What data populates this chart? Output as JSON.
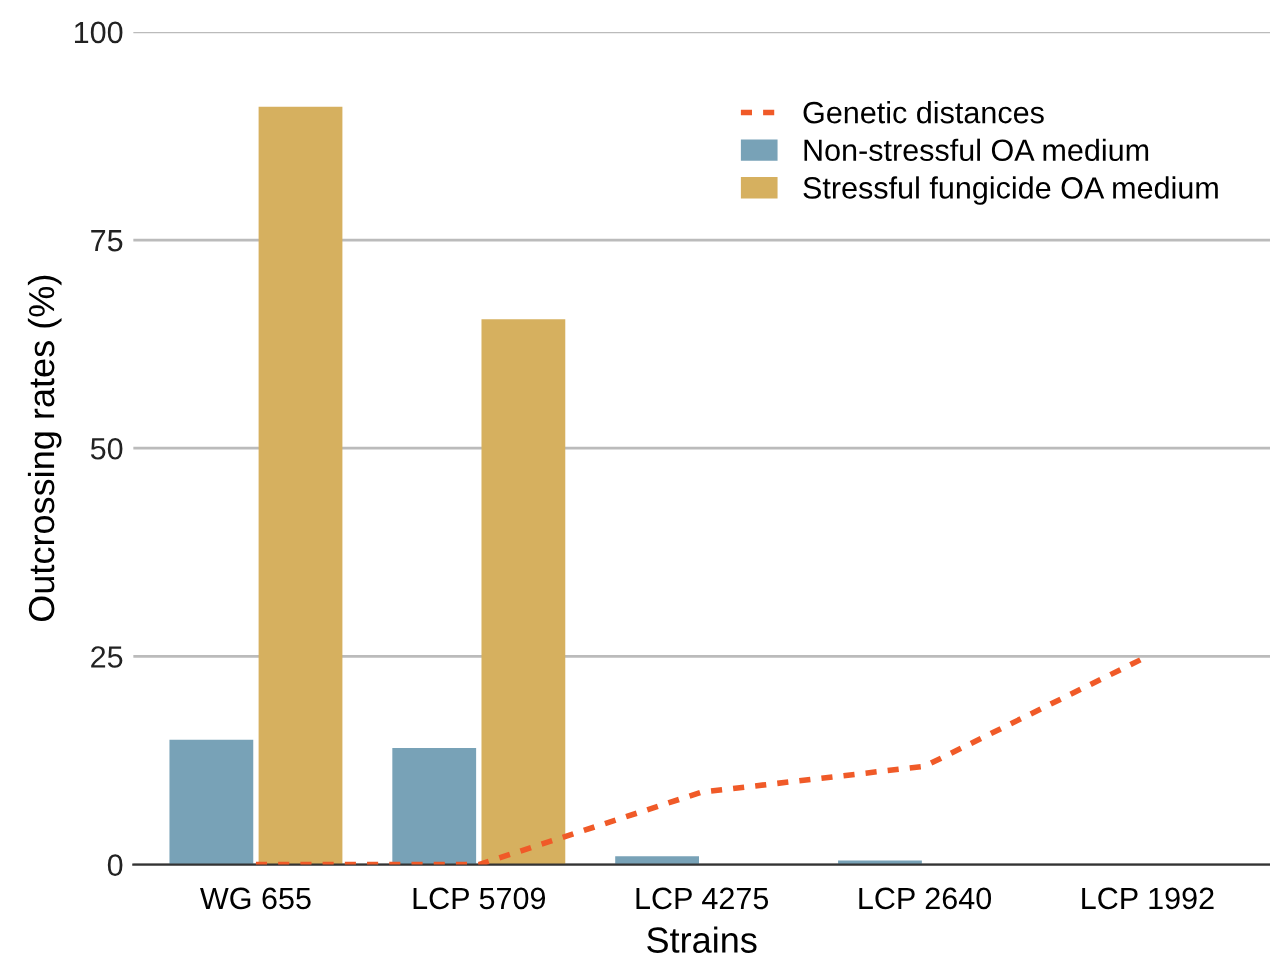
{
  "chart_data": {
    "type": "bar",
    "xlabel": "Strains",
    "ylabel": "Outcrossing rates (%)",
    "categories": [
      "WG 655",
      "LCP 5709",
      "LCP 4275",
      "LCP 2640",
      "LCP 1992"
    ],
    "series": [
      {
        "name": "Genetic distances",
        "type": "line",
        "color": "#f05a28",
        "line_style": "dashed",
        "values": [
          0,
          0,
          8.7,
          11.8,
          25
        ]
      },
      {
        "name": "Non-stressful OA medium",
        "color": "#78a2b7",
        "values": [
          15,
          14,
          1.0,
          0.5,
          null
        ]
      },
      {
        "name": "Stressful fungicide OA medium",
        "color": "#d6b05f",
        "values": [
          91,
          65.5,
          null,
          null,
          null
        ]
      }
    ],
    "ylim": [
      0,
      100
    ],
    "yticks": [
      0,
      25,
      50,
      75,
      100
    ],
    "grid": "y",
    "legend": "top right"
  }
}
